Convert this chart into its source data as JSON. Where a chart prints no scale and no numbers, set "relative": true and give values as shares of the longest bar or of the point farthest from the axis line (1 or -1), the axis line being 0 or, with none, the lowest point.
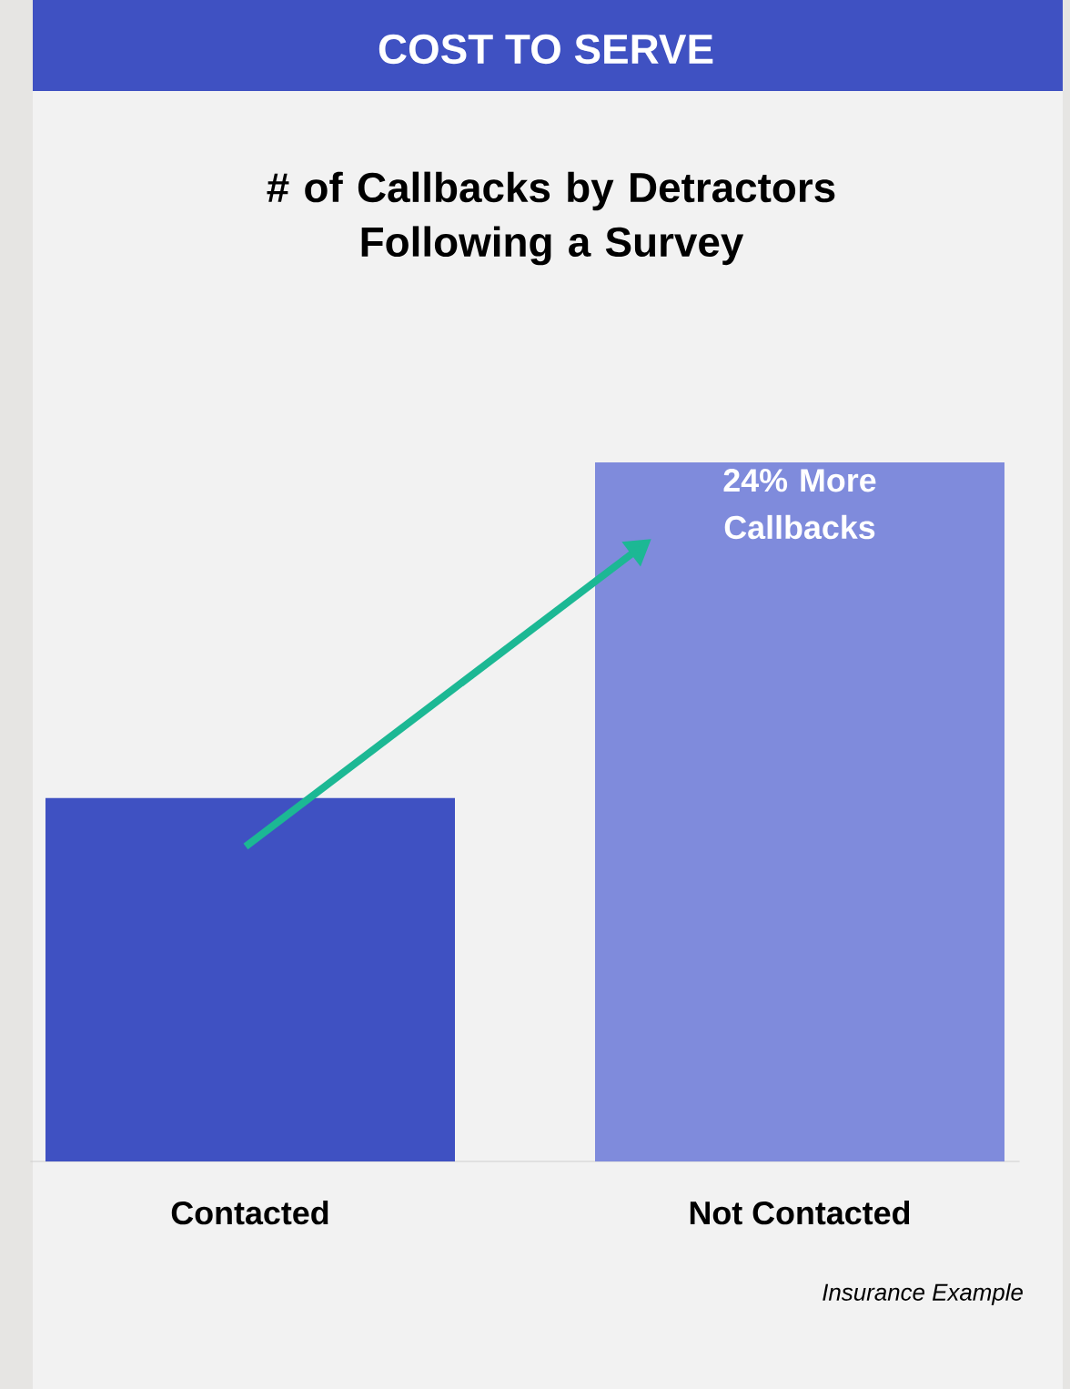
{
  "chart_data": {
    "type": "bar",
    "title": "COST TO SERVE",
    "subtitle": "# of Callbacks by Detractors Following a Survey",
    "categories": [
      "Contacted",
      "Not Contacted"
    ],
    "values": [
      0.52,
      1
    ],
    "colors": [
      "#3f51c2",
      "#7f8bdc"
    ],
    "relative": true,
    "annotations": [
      "24% More Callbacks",
      "Insurance Example"
    ]
  }
}
